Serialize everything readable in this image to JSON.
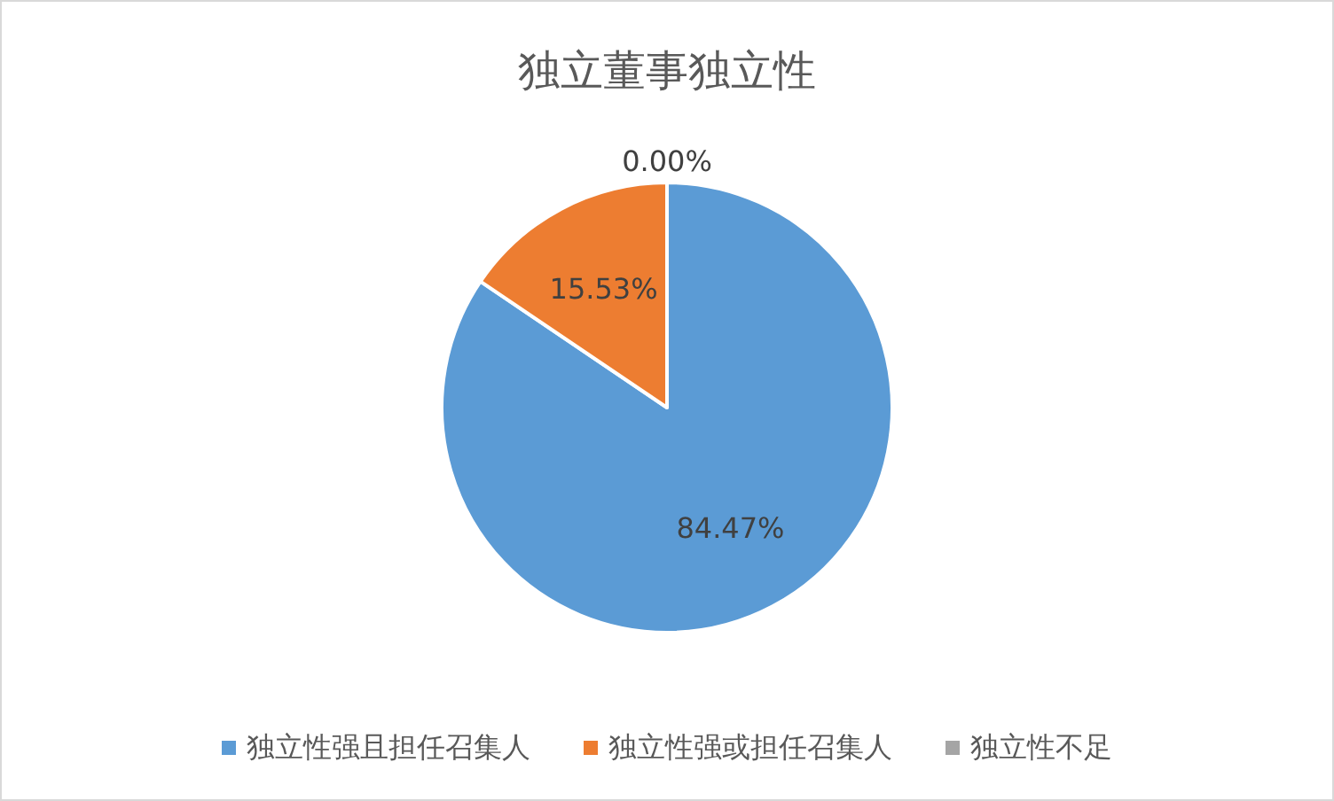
{
  "chart_data": {
    "type": "pie",
    "title": "独立董事独立性",
    "categories": [
      "独立性强且担任召集人",
      "独立性强或担任召集人",
      "独立性不足"
    ],
    "values": [
      84.47,
      15.53,
      0.0
    ],
    "colors": [
      "#5b9bd5",
      "#ed7d31",
      "#a5a5a5"
    ],
    "value_labels": [
      "84.47%",
      "15.53%",
      "0.00%"
    ],
    "legend": "bottom"
  }
}
